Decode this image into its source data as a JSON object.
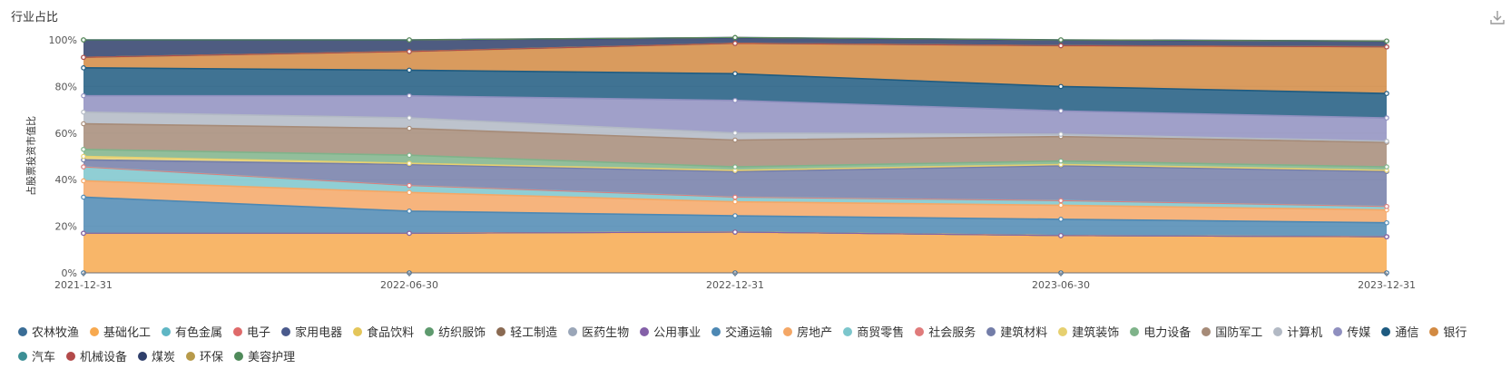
{
  "chart_data": {
    "type": "area",
    "stacked": true,
    "title": "行业占比",
    "ylabel": "占股票投资市值比",
    "xlabel": "",
    "x": [
      "2021-12-31",
      "2022-06-30",
      "2022-12-31",
      "2023-06-30",
      "2023-12-31"
    ],
    "ylim": [
      0,
      100
    ],
    "yticks": [
      "0%",
      "20%",
      "40%",
      "60%",
      "80%",
      "100%"
    ],
    "legend_position": "bottom",
    "series": [
      {
        "name": "农林牧渔",
        "color": "#3a6d96",
        "values": [
          0,
          0,
          0,
          0,
          0
        ]
      },
      {
        "name": "基础化工",
        "color": "#f7a94f",
        "values": [
          17,
          17,
          17.5,
          16,
          15.5
        ]
      },
      {
        "name": "有色金属",
        "color": "#5fb6c4",
        "values": [
          0,
          0,
          0,
          0,
          0
        ]
      },
      {
        "name": "电子",
        "color": "#df6a6a",
        "values": [
          0,
          0,
          0,
          0,
          0
        ]
      },
      {
        "name": "家用电器",
        "color": "#4a5a8c",
        "values": [
          0,
          0,
          0,
          0,
          0
        ]
      },
      {
        "name": "食品饮料",
        "color": "#e4c65a",
        "values": [
          0,
          0,
          0,
          0,
          0
        ]
      },
      {
        "name": "纺织服饰",
        "color": "#5e9a6e",
        "values": [
          0,
          0,
          0,
          0,
          0
        ]
      },
      {
        "name": "轻工制造",
        "color": "#8a6a52",
        "values": [
          0,
          0,
          0,
          0,
          0
        ]
      },
      {
        "name": "医药生物",
        "color": "#9aa6b8",
        "values": [
          0,
          0,
          0,
          0,
          0
        ]
      },
      {
        "name": "公用事业",
        "color": "#8460a8",
        "values": [
          0,
          0,
          0,
          0,
          0
        ]
      },
      {
        "name": "交通运输",
        "color": "#4d88b3",
        "values": [
          15.5,
          9.5,
          7,
          7,
          6
        ]
      },
      {
        "name": "房地产",
        "color": "#f4a766",
        "values": [
          7,
          8,
          6,
          6,
          5.5
        ]
      },
      {
        "name": "商贸零售",
        "color": "#7cc6cc",
        "values": [
          6,
          3,
          2,
          2,
          1.5
        ]
      },
      {
        "name": "社会服务",
        "color": "#e07b7b",
        "values": [
          0,
          0,
          0,
          0,
          0
        ]
      },
      {
        "name": "建筑材料",
        "color": "#737da8",
        "values": [
          3,
          9,
          11,
          15,
          15
        ]
      },
      {
        "name": "建筑装饰",
        "color": "#e6d070",
        "values": [
          1.5,
          0.5,
          0.5,
          0.5,
          0.5
        ]
      },
      {
        "name": "电力设备",
        "color": "#7fb38a",
        "values": [
          3,
          3.5,
          1.5,
          1.5,
          1.5
        ]
      },
      {
        "name": "国防军工",
        "color": "#a68b78",
        "values": [
          11,
          11.5,
          11.5,
          10.5,
          10.5
        ]
      },
      {
        "name": "计算机",
        "color": "#b2b9c4",
        "values": [
          5,
          4.5,
          3,
          1,
          0.5
        ]
      },
      {
        "name": "传媒",
        "color": "#8f8fbf",
        "values": [
          7,
          9.5,
          14,
          10,
          10
        ]
      },
      {
        "name": "通信",
        "color": "#1e5b80",
        "values": [
          12,
          11,
          11.5,
          10.5,
          10.5
        ]
      },
      {
        "name": "银行",
        "color": "#d28a42",
        "values": [
          4.5,
          8,
          13,
          17.5,
          20
        ]
      },
      {
        "name": "汽车",
        "color": "#3c8f95",
        "values": [
          0,
          0,
          0,
          0,
          0
        ]
      },
      {
        "name": "机械设备",
        "color": "#b34a4a",
        "values": [
          0,
          0,
          0,
          0,
          0
        ]
      },
      {
        "name": "煤炭",
        "color": "#2f3f6b",
        "values": [
          7.5,
          5,
          2.5,
          2.5,
          2.5
        ]
      },
      {
        "name": "环保",
        "color": "#b79a4a",
        "values": [
          0,
          0,
          0,
          0,
          0
        ]
      },
      {
        "name": "美容护理",
        "color": "#4f8a5a",
        "values": [
          0,
          0,
          0,
          0,
          0
        ]
      }
    ]
  }
}
